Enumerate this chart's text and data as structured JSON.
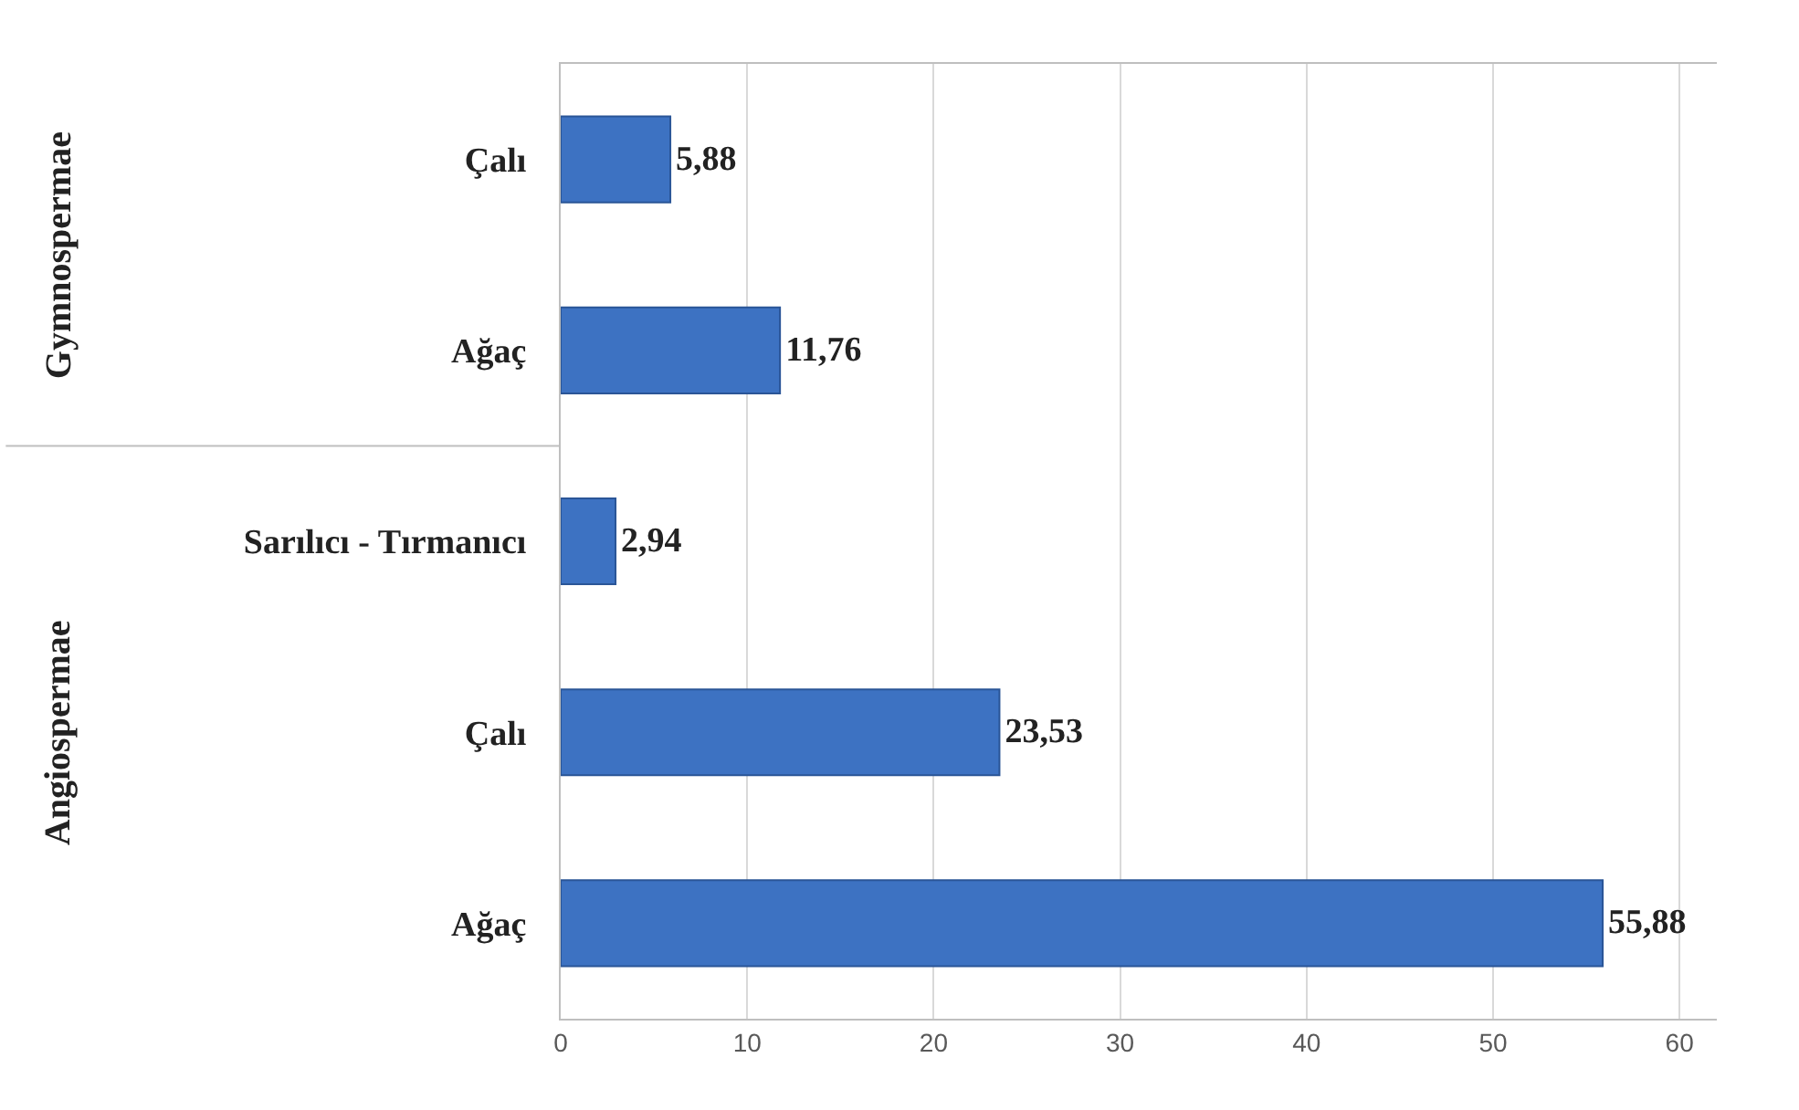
{
  "chart_data": {
    "type": "bar",
    "orientation": "horizontal",
    "categories": [
      "Çalı",
      "Ağaç",
      "Sarılıcı - Tırmanıcı",
      "Çalı",
      "Ağaç"
    ],
    "values": [
      5.88,
      11.76,
      2.94,
      23.53,
      55.88
    ],
    "value_labels": [
      "5,88",
      "11,76",
      "2,94",
      "23,53",
      "55,88"
    ],
    "color": "#3d72c2",
    "xlim": [
      0,
      62
    ],
    "xticks": [
      0,
      10,
      20,
      30,
      40,
      50,
      60
    ],
    "grid": "x",
    "legend": false,
    "annotations": [
      "Gymnospermae",
      "Angiospermae"
    ]
  }
}
